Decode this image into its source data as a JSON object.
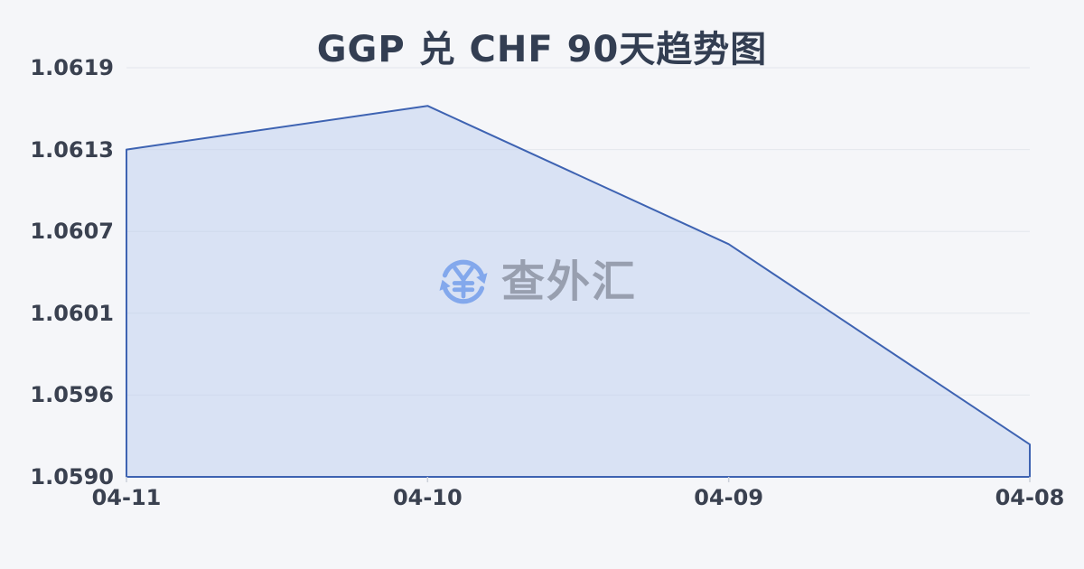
{
  "title": "GGP 兑 CHF 90天趋势图",
  "watermark": {
    "icon": "currency-exchange-icon",
    "text": "查外汇"
  },
  "colors": {
    "background": "#f5f6f9",
    "title_text": "#333e52",
    "axis_label_text": "#3a4150",
    "gridline": "#e4e7ed",
    "tick_mark": "#ccd1da",
    "line": "#3e63b2",
    "area_fill": "#b9c9ee",
    "watermark_icon": "#7aa2ec",
    "watermark_text": "#9198a8"
  },
  "chart_data": {
    "type": "area",
    "title": "GGP 兑 CHF 90天趋势图",
    "categories": [
      "04-11",
      "04-10",
      "04-09",
      "04-08"
    ],
    "values": [
      1.06132,
      1.06163,
      1.06065,
      1.05923
    ],
    "xlabel": "",
    "ylabel": "",
    "y_tick_labels": [
      "1.0619",
      "1.0613",
      "1.0607",
      "1.0601",
      "1.0596",
      "1.0590"
    ],
    "ylim": [
      1.059,
      1.0619
    ],
    "grid": true,
    "legend": "none",
    "x_axis_note": "dates descend left to right"
  }
}
